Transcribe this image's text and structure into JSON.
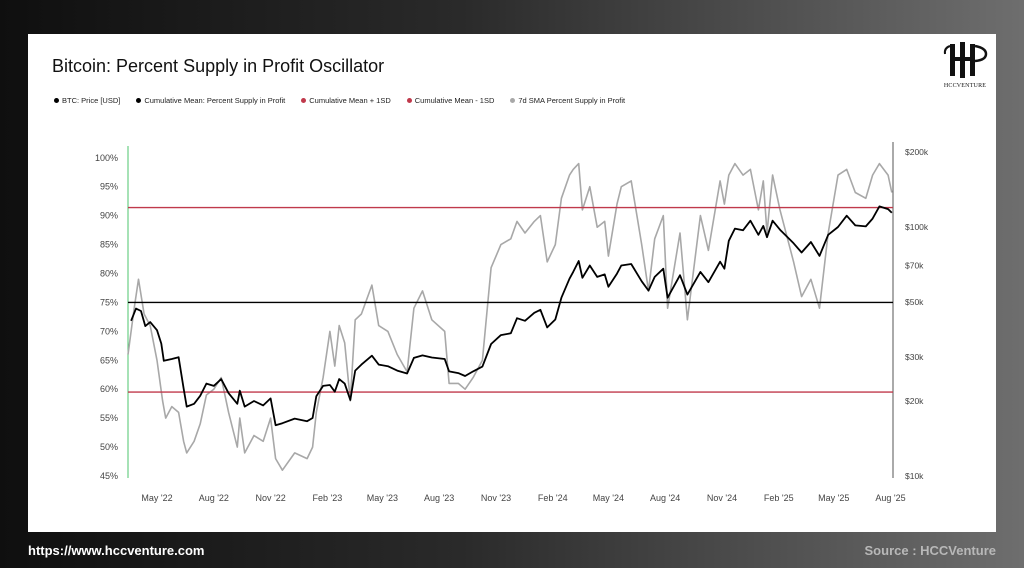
{
  "footer": {
    "url": "https://www.hccventure.com",
    "source": "Source : HCCVenture"
  },
  "logo": {
    "caption": "HCCVENTURE",
    "mark": "H"
  },
  "chart_data": {
    "type": "line",
    "title": "Bitcoin: Percent Supply in Profit Oscillator",
    "legend": [
      {
        "label": "BTC: Price [USD]",
        "color": "#000000"
      },
      {
        "label": "Cumulative Mean: Percent Supply in Profit",
        "color": "#000000"
      },
      {
        "label": "Cumulative Mean + 1SD",
        "color": "#c0394b"
      },
      {
        "label": "Cumulative Mean - 1SD",
        "color": "#c0394b"
      },
      {
        "label": "7d SMA Percent Supply in Profit",
        "color": "#a8a8a8"
      }
    ],
    "legend_position": "top-left",
    "grid": false,
    "x_ticks": [
      "May '22",
      "Aug '22",
      "Nov '22",
      "Feb '23",
      "May '23",
      "Aug '23",
      "Nov '23",
      "Feb '24",
      "May '24",
      "Aug '24",
      "Nov '24",
      "Feb '25",
      "May '25",
      "Aug '25"
    ],
    "x_range": [
      "2022-03-15",
      "2025-08-05"
    ],
    "y_left": {
      "ticks": [
        "100%",
        "95%",
        "90%",
        "85%",
        "80%",
        "75%",
        "70%",
        "65%",
        "60%",
        "55%",
        "50%",
        "45%"
      ],
      "range": [
        45,
        101
      ]
    },
    "y_right": {
      "scale": "log",
      "ticks": [
        {
          "label": "$200k",
          "value": 200000
        },
        {
          "label": "$100k",
          "value": 100000
        },
        {
          "label": "$70k",
          "value": 70000
        },
        {
          "label": "$50k",
          "value": 50000
        },
        {
          "label": "$30k",
          "value": 30000
        },
        {
          "label": "$20k",
          "value": 20000
        },
        {
          "label": "$10k",
          "value": 10000
        }
      ],
      "range": [
        10000,
        200000
      ]
    },
    "reference_lines": {
      "cumulative_mean": 75.0,
      "mean_plus_1sd": 91.4,
      "mean_minus_1sd": 59.5
    },
    "series": [
      {
        "name": "BTC: Price [USD]",
        "axis": "right",
        "color": "#000000",
        "points": [
          [
            "2022-03-20",
            42000
          ],
          [
            "2022-03-28",
            47000
          ],
          [
            "2022-04-05",
            46000
          ],
          [
            "2022-04-12",
            40000
          ],
          [
            "2022-04-20",
            41500
          ],
          [
            "2022-05-01",
            38500
          ],
          [
            "2022-05-08",
            34000
          ],
          [
            "2022-05-12",
            29000
          ],
          [
            "2022-05-25",
            29500
          ],
          [
            "2022-06-05",
            30000
          ],
          [
            "2022-06-13",
            22500
          ],
          [
            "2022-06-18",
            19000
          ],
          [
            "2022-06-30",
            19500
          ],
          [
            "2022-07-10",
            21000
          ],
          [
            "2022-07-20",
            23500
          ],
          [
            "2022-08-01",
            23000
          ],
          [
            "2022-08-13",
            24500
          ],
          [
            "2022-08-25",
            21500
          ],
          [
            "2022-09-08",
            19500
          ],
          [
            "2022-09-12",
            22000
          ],
          [
            "2022-09-20",
            19000
          ],
          [
            "2022-10-05",
            20000
          ],
          [
            "2022-10-20",
            19200
          ],
          [
            "2022-11-01",
            20500
          ],
          [
            "2022-11-09",
            16000
          ],
          [
            "2022-11-20",
            16300
          ],
          [
            "2022-12-10",
            17000
          ],
          [
            "2022-12-30",
            16600
          ],
          [
            "2023-01-08",
            17100
          ],
          [
            "2023-01-14",
            20900
          ],
          [
            "2023-01-25",
            23000
          ],
          [
            "2023-02-05",
            23200
          ],
          [
            "2023-02-13",
            21800
          ],
          [
            "2023-02-20",
            24500
          ],
          [
            "2023-03-01",
            23500
          ],
          [
            "2023-03-10",
            20200
          ],
          [
            "2023-03-18",
            26500
          ],
          [
            "2023-03-28",
            28000
          ],
          [
            "2023-04-14",
            30400
          ],
          [
            "2023-04-25",
            28000
          ],
          [
            "2023-05-10",
            27600
          ],
          [
            "2023-05-25",
            26500
          ],
          [
            "2023-06-10",
            25800
          ],
          [
            "2023-06-21",
            29800
          ],
          [
            "2023-07-05",
            30500
          ],
          [
            "2023-07-20",
            29900
          ],
          [
            "2023-08-10",
            29500
          ],
          [
            "2023-08-17",
            26300
          ],
          [
            "2023-09-01",
            25900
          ],
          [
            "2023-09-12",
            25200
          ],
          [
            "2023-09-25",
            26300
          ],
          [
            "2023-10-10",
            27500
          ],
          [
            "2023-10-24",
            33900
          ],
          [
            "2023-11-09",
            36800
          ],
          [
            "2023-11-25",
            37400
          ],
          [
            "2023-12-05",
            43000
          ],
          [
            "2023-12-18",
            42000
          ],
          [
            "2024-01-02",
            45200
          ],
          [
            "2024-01-12",
            46500
          ],
          [
            "2024-01-23",
            39500
          ],
          [
            "2024-02-05",
            42500
          ],
          [
            "2024-02-15",
            52000
          ],
          [
            "2024-02-28",
            62000
          ],
          [
            "2024-03-05",
            66000
          ],
          [
            "2024-03-14",
            73000
          ],
          [
            "2024-03-20",
            62500
          ],
          [
            "2024-04-01",
            70000
          ],
          [
            "2024-04-13",
            63000
          ],
          [
            "2024-04-25",
            64500
          ],
          [
            "2024-05-01",
            57500
          ],
          [
            "2024-05-15",
            65000
          ],
          [
            "2024-05-22",
            70000
          ],
          [
            "2024-06-07",
            71000
          ],
          [
            "2024-06-24",
            60500
          ],
          [
            "2024-07-05",
            55500
          ],
          [
            "2024-07-15",
            63000
          ],
          [
            "2024-07-29",
            68000
          ],
          [
            "2024-08-05",
            52000
          ],
          [
            "2024-08-25",
            64000
          ],
          [
            "2024-09-06",
            53500
          ],
          [
            "2024-09-27",
            66000
          ],
          [
            "2024-10-10",
            60000
          ],
          [
            "2024-10-29",
            72500
          ],
          [
            "2024-11-05",
            68000
          ],
          [
            "2024-11-12",
            88000
          ],
          [
            "2024-11-22",
            98500
          ],
          [
            "2024-12-05",
            97000
          ],
          [
            "2024-12-17",
            106000
          ],
          [
            "2024-12-30",
            93000
          ],
          [
            "2025-01-07",
            101000
          ],
          [
            "2025-01-13",
            91000
          ],
          [
            "2025-01-22",
            106000
          ],
          [
            "2025-02-03",
            97500
          ],
          [
            "2025-02-25",
            86000
          ],
          [
            "2025-03-10",
            79000
          ],
          [
            "2025-03-25",
            87000
          ],
          [
            "2025-04-08",
            76500
          ],
          [
            "2025-04-22",
            93000
          ],
          [
            "2025-05-08",
            100000
          ],
          [
            "2025-05-22",
            111000
          ],
          [
            "2025-06-05",
            101500
          ],
          [
            "2025-06-22",
            100500
          ],
          [
            "2025-07-03",
            108000
          ],
          [
            "2025-07-14",
            121000
          ],
          [
            "2025-07-28",
            118000
          ],
          [
            "2025-08-03",
            114000
          ]
        ]
      },
      {
        "name": "7d SMA Percent Supply in Profit",
        "axis": "left",
        "color": "#a8a8a8",
        "points": [
          [
            "2022-03-15",
            66
          ],
          [
            "2022-03-25",
            74
          ],
          [
            "2022-04-01",
            79
          ],
          [
            "2022-04-10",
            73
          ],
          [
            "2022-04-20",
            71
          ],
          [
            "2022-05-01",
            65
          ],
          [
            "2022-05-10",
            58
          ],
          [
            "2022-05-15",
            55
          ],
          [
            "2022-05-25",
            57
          ],
          [
            "2022-06-05",
            56
          ],
          [
            "2022-06-13",
            51
          ],
          [
            "2022-06-18",
            49
          ],
          [
            "2022-06-30",
            51
          ],
          [
            "2022-07-10",
            54
          ],
          [
            "2022-07-20",
            59
          ],
          [
            "2022-08-01",
            60
          ],
          [
            "2022-08-13",
            62
          ],
          [
            "2022-08-25",
            56
          ],
          [
            "2022-09-08",
            50
          ],
          [
            "2022-09-12",
            55
          ],
          [
            "2022-09-20",
            49
          ],
          [
            "2022-10-05",
            52
          ],
          [
            "2022-10-20",
            51
          ],
          [
            "2022-11-01",
            55
          ],
          [
            "2022-11-09",
            48
          ],
          [
            "2022-11-20",
            46
          ],
          [
            "2022-12-10",
            49
          ],
          [
            "2022-12-30",
            48
          ],
          [
            "2023-01-08",
            50
          ],
          [
            "2023-01-14",
            56
          ],
          [
            "2023-01-25",
            62
          ],
          [
            "2023-02-05",
            70
          ],
          [
            "2023-02-13",
            64
          ],
          [
            "2023-02-20",
            71
          ],
          [
            "2023-03-01",
            68
          ],
          [
            "2023-03-10",
            58
          ],
          [
            "2023-03-18",
            72
          ],
          [
            "2023-03-28",
            73
          ],
          [
            "2023-04-14",
            78
          ],
          [
            "2023-04-25",
            71
          ],
          [
            "2023-05-10",
            70
          ],
          [
            "2023-05-25",
            66
          ],
          [
            "2023-06-10",
            63
          ],
          [
            "2023-06-21",
            74
          ],
          [
            "2023-07-05",
            77
          ],
          [
            "2023-07-20",
            72
          ],
          [
            "2023-08-10",
            70
          ],
          [
            "2023-08-17",
            61
          ],
          [
            "2023-09-01",
            61
          ],
          [
            "2023-09-12",
            60
          ],
          [
            "2023-09-25",
            62
          ],
          [
            "2023-10-10",
            65
          ],
          [
            "2023-10-24",
            81
          ],
          [
            "2023-11-09",
            85
          ],
          [
            "2023-11-25",
            86
          ],
          [
            "2023-12-05",
            89
          ],
          [
            "2023-12-18",
            87
          ],
          [
            "2024-01-02",
            89
          ],
          [
            "2024-01-12",
            90
          ],
          [
            "2024-01-23",
            82
          ],
          [
            "2024-02-05",
            85
          ],
          [
            "2024-02-15",
            93
          ],
          [
            "2024-02-28",
            97
          ],
          [
            "2024-03-05",
            98
          ],
          [
            "2024-03-14",
            99
          ],
          [
            "2024-03-20",
            91
          ],
          [
            "2024-04-01",
            95
          ],
          [
            "2024-04-13",
            88
          ],
          [
            "2024-04-25",
            89
          ],
          [
            "2024-05-01",
            83
          ],
          [
            "2024-05-15",
            92
          ],
          [
            "2024-05-22",
            95
          ],
          [
            "2024-06-07",
            96
          ],
          [
            "2024-06-24",
            85
          ],
          [
            "2024-07-05",
            77
          ],
          [
            "2024-07-15",
            86
          ],
          [
            "2024-07-29",
            90
          ],
          [
            "2024-08-05",
            74
          ],
          [
            "2024-08-25",
            87
          ],
          [
            "2024-09-06",
            72
          ],
          [
            "2024-09-27",
            90
          ],
          [
            "2024-10-10",
            84
          ],
          [
            "2024-10-29",
            96
          ],
          [
            "2024-11-05",
            92
          ],
          [
            "2024-11-12",
            97
          ],
          [
            "2024-11-22",
            99
          ],
          [
            "2024-12-05",
            97
          ],
          [
            "2024-12-17",
            98
          ],
          [
            "2024-12-30",
            91
          ],
          [
            "2025-01-07",
            96
          ],
          [
            "2025-01-13",
            87
          ],
          [
            "2025-01-22",
            97
          ],
          [
            "2025-02-03",
            91
          ],
          [
            "2025-02-25",
            82
          ],
          [
            "2025-03-10",
            76
          ],
          [
            "2025-03-25",
            79
          ],
          [
            "2025-04-08",
            74
          ],
          [
            "2025-04-22",
            87
          ],
          [
            "2025-05-08",
            97
          ],
          [
            "2025-05-22",
            98
          ],
          [
            "2025-06-05",
            94
          ],
          [
            "2025-06-22",
            93
          ],
          [
            "2025-07-03",
            97
          ],
          [
            "2025-07-14",
            99
          ],
          [
            "2025-07-28",
            97
          ],
          [
            "2025-08-03",
            94
          ]
        ]
      }
    ]
  }
}
